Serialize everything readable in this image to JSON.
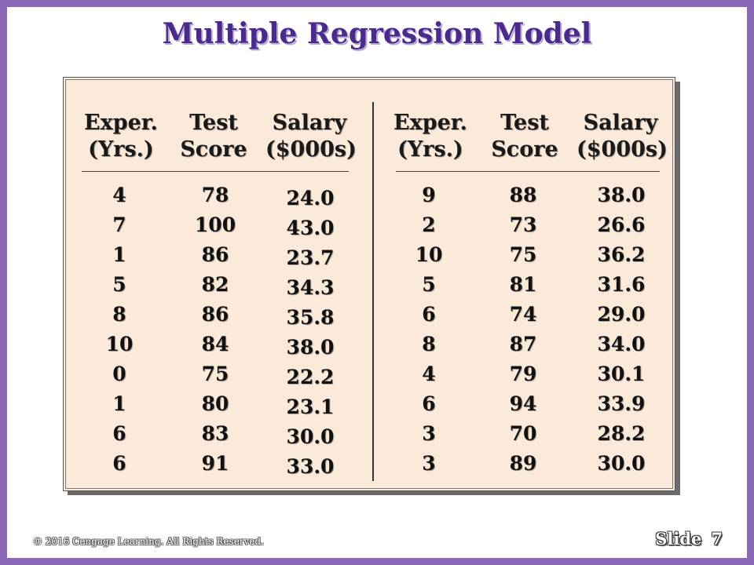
{
  "slide": {
    "title": "Multiple Regression Model",
    "copyright": "© 2016 Cengage Learning.  All Rights Reserved.",
    "slide_label": "Slide",
    "slide_number": "7"
  },
  "headers": {
    "exper": [
      "Exper.",
      "(Yrs.)"
    ],
    "test": [
      "Test",
      "Score"
    ],
    "salary": [
      "Salary",
      "($000s)"
    ]
  },
  "left_table": {
    "experience": [
      "4",
      "7",
      "1",
      "5",
      "8",
      "10",
      "0",
      "1",
      "6",
      "6"
    ],
    "test_score": [
      "78",
      "100",
      "86",
      "82",
      "86",
      "84",
      "75",
      "80",
      "83",
      "91"
    ],
    "salary": [
      "24.0",
      "43.0",
      "23.7",
      "34.3",
      "35.8",
      "38.0",
      "22.2",
      "23.1",
      "30.0",
      "33.0"
    ]
  },
  "right_table": {
    "experience": [
      "9",
      "2",
      "10",
      "5",
      "6",
      "8",
      "4",
      "6",
      "3",
      "3"
    ],
    "test_score": [
      "88",
      "73",
      "75",
      "81",
      "74",
      "87",
      "79",
      "94",
      "70",
      "89"
    ],
    "salary": [
      "38.0",
      "26.6",
      "36.2",
      "31.6",
      "29.0",
      "34.0",
      "30.1",
      "33.9",
      "28.2",
      "30.0"
    ]
  }
}
